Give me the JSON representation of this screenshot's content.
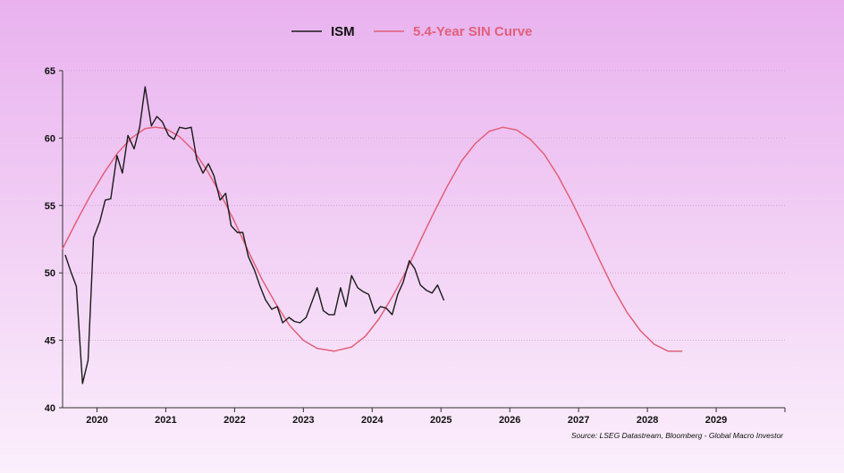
{
  "chart_data": {
    "type": "line",
    "title": "",
    "xlabel": "",
    "ylabel": "",
    "ylim": [
      40,
      65
    ],
    "yticks": [
      40,
      45,
      50,
      55,
      60,
      65
    ],
    "xlim": [
      2019.5,
      2030.0
    ],
    "xtick_labels": [
      "2020",
      "2021",
      "2022",
      "2023",
      "2024",
      "2025",
      "2026",
      "2027",
      "2028",
      "2029"
    ],
    "grid": "horizontal dotted",
    "legend_position": "top-center",
    "source": "Source: LSEG Datastream, Bloomberg - Global Macro Investor",
    "series": [
      {
        "name": "ISM",
        "color": "#1a1a1a",
        "points": [
          [
            2019.54,
            51.3
          ],
          [
            2019.62,
            50.1
          ],
          [
            2019.7,
            49.0
          ],
          [
            2019.79,
            41.8
          ],
          [
            2019.87,
            43.5
          ],
          [
            2019.95,
            52.6
          ],
          [
            2020.04,
            53.8
          ],
          [
            2020.12,
            55.4
          ],
          [
            2020.2,
            55.5
          ],
          [
            2020.29,
            58.7
          ],
          [
            2020.37,
            57.4
          ],
          [
            2020.45,
            60.2
          ],
          [
            2020.54,
            59.2
          ],
          [
            2020.62,
            60.8
          ],
          [
            2020.7,
            63.8
          ],
          [
            2020.79,
            60.9
          ],
          [
            2020.87,
            61.6
          ],
          [
            2020.95,
            61.2
          ],
          [
            2021.04,
            60.2
          ],
          [
            2021.12,
            59.9
          ],
          [
            2021.2,
            60.8
          ],
          [
            2021.29,
            60.7
          ],
          [
            2021.37,
            60.8
          ],
          [
            2021.45,
            58.4
          ],
          [
            2021.54,
            57.4
          ],
          [
            2021.62,
            58.1
          ],
          [
            2021.7,
            57.2
          ],
          [
            2021.79,
            55.4
          ],
          [
            2021.87,
            55.9
          ],
          [
            2021.95,
            53.5
          ],
          [
            2022.04,
            53.0
          ],
          [
            2022.12,
            53.0
          ],
          [
            2022.2,
            51.2
          ],
          [
            2022.29,
            50.2
          ],
          [
            2022.37,
            49.0
          ],
          [
            2022.45,
            48.0
          ],
          [
            2022.54,
            47.3
          ],
          [
            2022.62,
            47.5
          ],
          [
            2022.7,
            46.3
          ],
          [
            2022.79,
            46.7
          ],
          [
            2022.87,
            46.4
          ],
          [
            2022.95,
            46.3
          ],
          [
            2023.04,
            46.7
          ],
          [
            2023.12,
            47.8
          ],
          [
            2023.2,
            48.9
          ],
          [
            2023.29,
            47.2
          ],
          [
            2023.37,
            46.9
          ],
          [
            2023.45,
            46.9
          ],
          [
            2023.54,
            48.9
          ],
          [
            2023.62,
            47.5
          ],
          [
            2023.7,
            49.8
          ],
          [
            2023.79,
            48.9
          ],
          [
            2023.87,
            48.6
          ],
          [
            2023.95,
            48.4
          ],
          [
            2024.04,
            47.0
          ],
          [
            2024.12,
            47.5
          ],
          [
            2024.2,
            47.4
          ],
          [
            2024.29,
            46.9
          ],
          [
            2024.37,
            48.4
          ],
          [
            2024.45,
            49.3
          ],
          [
            2024.54,
            50.9
          ],
          [
            2024.62,
            50.3
          ],
          [
            2024.7,
            49.1
          ],
          [
            2024.79,
            48.7
          ],
          [
            2024.87,
            48.5
          ],
          [
            2024.95,
            49.1
          ],
          [
            2025.04,
            48.0
          ]
        ]
      },
      {
        "name": "5.4-Year SIN Curve",
        "color": "#e0607a",
        "points": [
          [
            2019.5,
            51.8
          ],
          [
            2019.7,
            53.8
          ],
          [
            2019.9,
            55.7
          ],
          [
            2020.1,
            57.4
          ],
          [
            2020.3,
            58.9
          ],
          [
            2020.5,
            60.0
          ],
          [
            2020.7,
            60.7
          ],
          [
            2020.85,
            60.8
          ],
          [
            2021.0,
            60.7
          ],
          [
            2021.2,
            60.1
          ],
          [
            2021.4,
            59.1
          ],
          [
            2021.6,
            57.6
          ],
          [
            2021.8,
            55.8
          ],
          [
            2022.0,
            53.8
          ],
          [
            2022.2,
            51.6
          ],
          [
            2022.4,
            49.5
          ],
          [
            2022.6,
            47.7
          ],
          [
            2022.8,
            46.1
          ],
          [
            2023.0,
            45.0
          ],
          [
            2023.2,
            44.4
          ],
          [
            2023.45,
            44.2
          ],
          [
            2023.7,
            44.5
          ],
          [
            2023.9,
            45.3
          ],
          [
            2024.1,
            46.6
          ],
          [
            2024.3,
            48.3
          ],
          [
            2024.5,
            50.2
          ],
          [
            2024.7,
            52.4
          ],
          [
            2024.9,
            54.5
          ],
          [
            2025.1,
            56.5
          ],
          [
            2025.3,
            58.3
          ],
          [
            2025.5,
            59.6
          ],
          [
            2025.7,
            60.5
          ],
          [
            2025.9,
            60.8
          ],
          [
            2026.1,
            60.6
          ],
          [
            2026.3,
            59.9
          ],
          [
            2026.5,
            58.8
          ],
          [
            2026.7,
            57.2
          ],
          [
            2026.9,
            55.3
          ],
          [
            2027.1,
            53.2
          ],
          [
            2027.3,
            51.0
          ],
          [
            2027.5,
            48.9
          ],
          [
            2027.7,
            47.1
          ],
          [
            2027.9,
            45.7
          ],
          [
            2028.1,
            44.7
          ],
          [
            2028.3,
            44.2
          ],
          [
            2028.5,
            44.2
          ]
        ]
      }
    ]
  }
}
